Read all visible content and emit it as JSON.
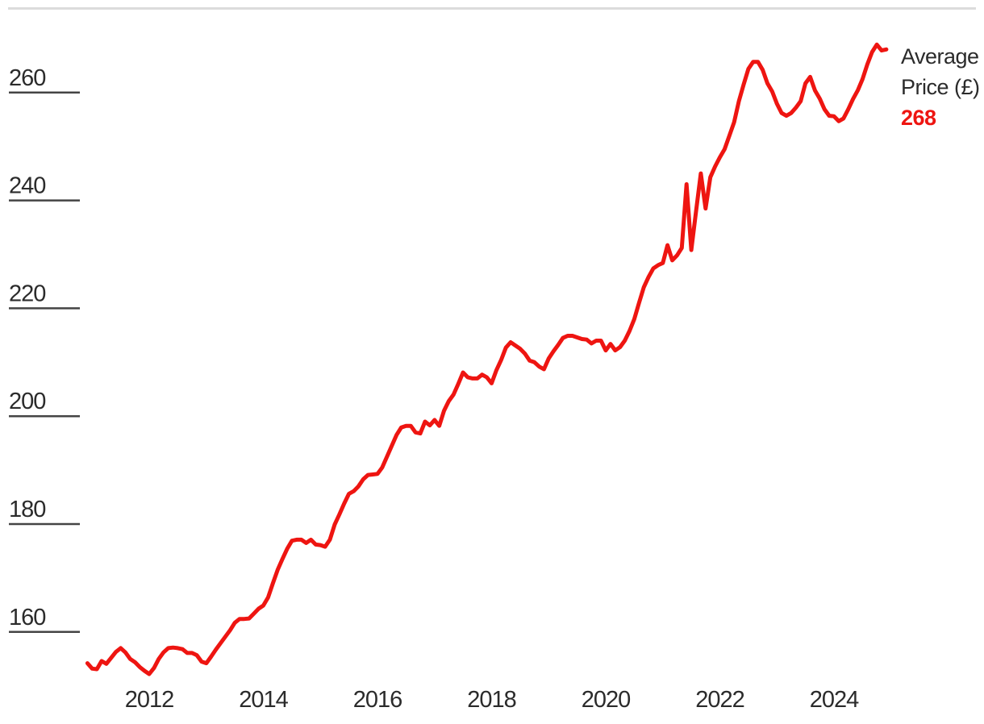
{
  "chart_data": {
    "type": "line",
    "title": "",
    "xlabel": "",
    "ylabel": "",
    "x_tick_labels": [
      "2012",
      "2014",
      "2016",
      "2018",
      "2020",
      "2022",
      "2024"
    ],
    "x_tick_years": [
      2012,
      2014,
      2016,
      2018,
      2020,
      2022,
      2024
    ],
    "y_ticks": [
      160,
      180,
      200,
      220,
      240,
      260
    ],
    "ylim": [
      148,
      272
    ],
    "grid": "horizontal-tick-stubs-left-only",
    "legend_position": "right-of-line-end",
    "series": [
      {
        "name": "Average Price (£)",
        "frequency": "monthly",
        "start": "2010-12",
        "end": "2024-12",
        "final_value": 268,
        "values": [
          154.2,
          153.2,
          153.1,
          154.6,
          154.1,
          155.2,
          156.3,
          157.0,
          156.2,
          155.0,
          154.4,
          153.5,
          152.8,
          152.2,
          153.3,
          155.0,
          156.2,
          157.0,
          157.1,
          157.0,
          156.8,
          156.1,
          156.1,
          155.7,
          154.5,
          154.2,
          155.4,
          156.7,
          157.9,
          159.1,
          160.3,
          161.7,
          162.4,
          162.4,
          162.5,
          163.4,
          164.3,
          164.9,
          166.4,
          169.0,
          171.5,
          173.5,
          175.4,
          176.9,
          177.1,
          177.1,
          176.5,
          177.1,
          176.2,
          176.1,
          175.8,
          177.1,
          179.9,
          181.8,
          183.8,
          185.6,
          186.1,
          187.0,
          188.3,
          189.1,
          189.2,
          189.3,
          190.5,
          192.5,
          194.5,
          196.5,
          197.9,
          198.2,
          198.2,
          197.0,
          196.8,
          199.0,
          198.3,
          199.3,
          198.2,
          201.0,
          202.8,
          204.0,
          206.0,
          208.1,
          207.2,
          207.0,
          207.0,
          207.7,
          207.2,
          206.1,
          208.5,
          210.4,
          212.7,
          213.7,
          213.1,
          212.5,
          211.6,
          210.3,
          210.0,
          209.2,
          208.7,
          210.7,
          212.0,
          213.2,
          214.5,
          214.9,
          214.9,
          214.6,
          214.3,
          214.2,
          213.5,
          214.0,
          214.0,
          212.2,
          213.4,
          212.2,
          212.8,
          214.0,
          215.8,
          218.0,
          221.0,
          223.9,
          225.8,
          227.4,
          228.0,
          228.4,
          231.7,
          228.9,
          229.8,
          231.2,
          243.0,
          230.8,
          238.0,
          245.0,
          238.5,
          244.3,
          246.3,
          248.0,
          249.5,
          252.0,
          254.5,
          258.4,
          261.5,
          264.4,
          265.7,
          265.7,
          264.2,
          261.7,
          260.2,
          257.9,
          256.2,
          255.7,
          256.2,
          257.2,
          258.4,
          261.7,
          262.9,
          260.4,
          258.9,
          256.9,
          255.7,
          255.6,
          254.7,
          255.2,
          256.9,
          258.8,
          260.4,
          262.5,
          265.2,
          267.5,
          268.9,
          267.8,
          268.0
        ]
      }
    ]
  },
  "legend": {
    "label_line1": "Average",
    "label_line2": "Price (£)",
    "value": "268"
  },
  "colors": {
    "line": "#ee1511",
    "legend_value": "#ee1511",
    "text": "#2b2b2b",
    "tick_line": "#444444",
    "top_rule": "#dcdcdc",
    "background": "#ffffff"
  }
}
